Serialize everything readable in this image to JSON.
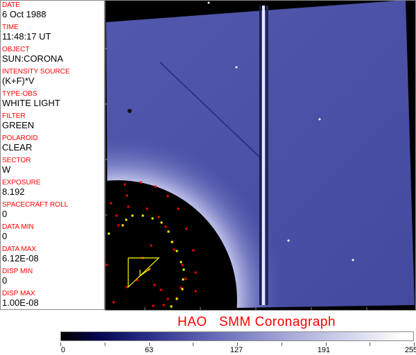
{
  "info_panel": {
    "fields": [
      {
        "label": "DATE",
        "value": "6 Oct 1988"
      },
      {
        "label": "TIME",
        "value": "11:48:17 UT"
      },
      {
        "label": "OBJECT",
        "value": "SUN:CORONA"
      },
      {
        "label": "INTENSITY SOURCE",
        "value": "(K+F)*V"
      },
      {
        "label": "TYPE-OBS",
        "value": "WHITE LIGHT"
      },
      {
        "label": "FILTER",
        "value": "GREEN"
      },
      {
        "label": "POLAROID",
        "value": "CLEAR"
      },
      {
        "label": "SECTOR",
        "value": "W"
      },
      {
        "label": "EXPOSURE",
        "value": "8.192"
      },
      {
        "label": "SPACECRAFT ROLL",
        "value": "0"
      },
      {
        "label": "DATA MIN",
        "value": "0"
      },
      {
        "label": "DATA MAX",
        "value": "6.12E-08"
      },
      {
        "label": "DISP MIN",
        "value": "0"
      },
      {
        "label": "DISP MAX",
        "value": "1.00E-08"
      }
    ]
  },
  "title": "HAO   SMM Coronagraph",
  "colorbar": {
    "tick_labels": [
      "0",
      "63",
      "127",
      "191",
      "255"
    ],
    "min": 0,
    "max": 255
  },
  "colors": {
    "label": "#ff0000",
    "corona": "#4a50a8",
    "overlay_red": "#ff0000",
    "overlay_yellow": "#ffff00"
  }
}
